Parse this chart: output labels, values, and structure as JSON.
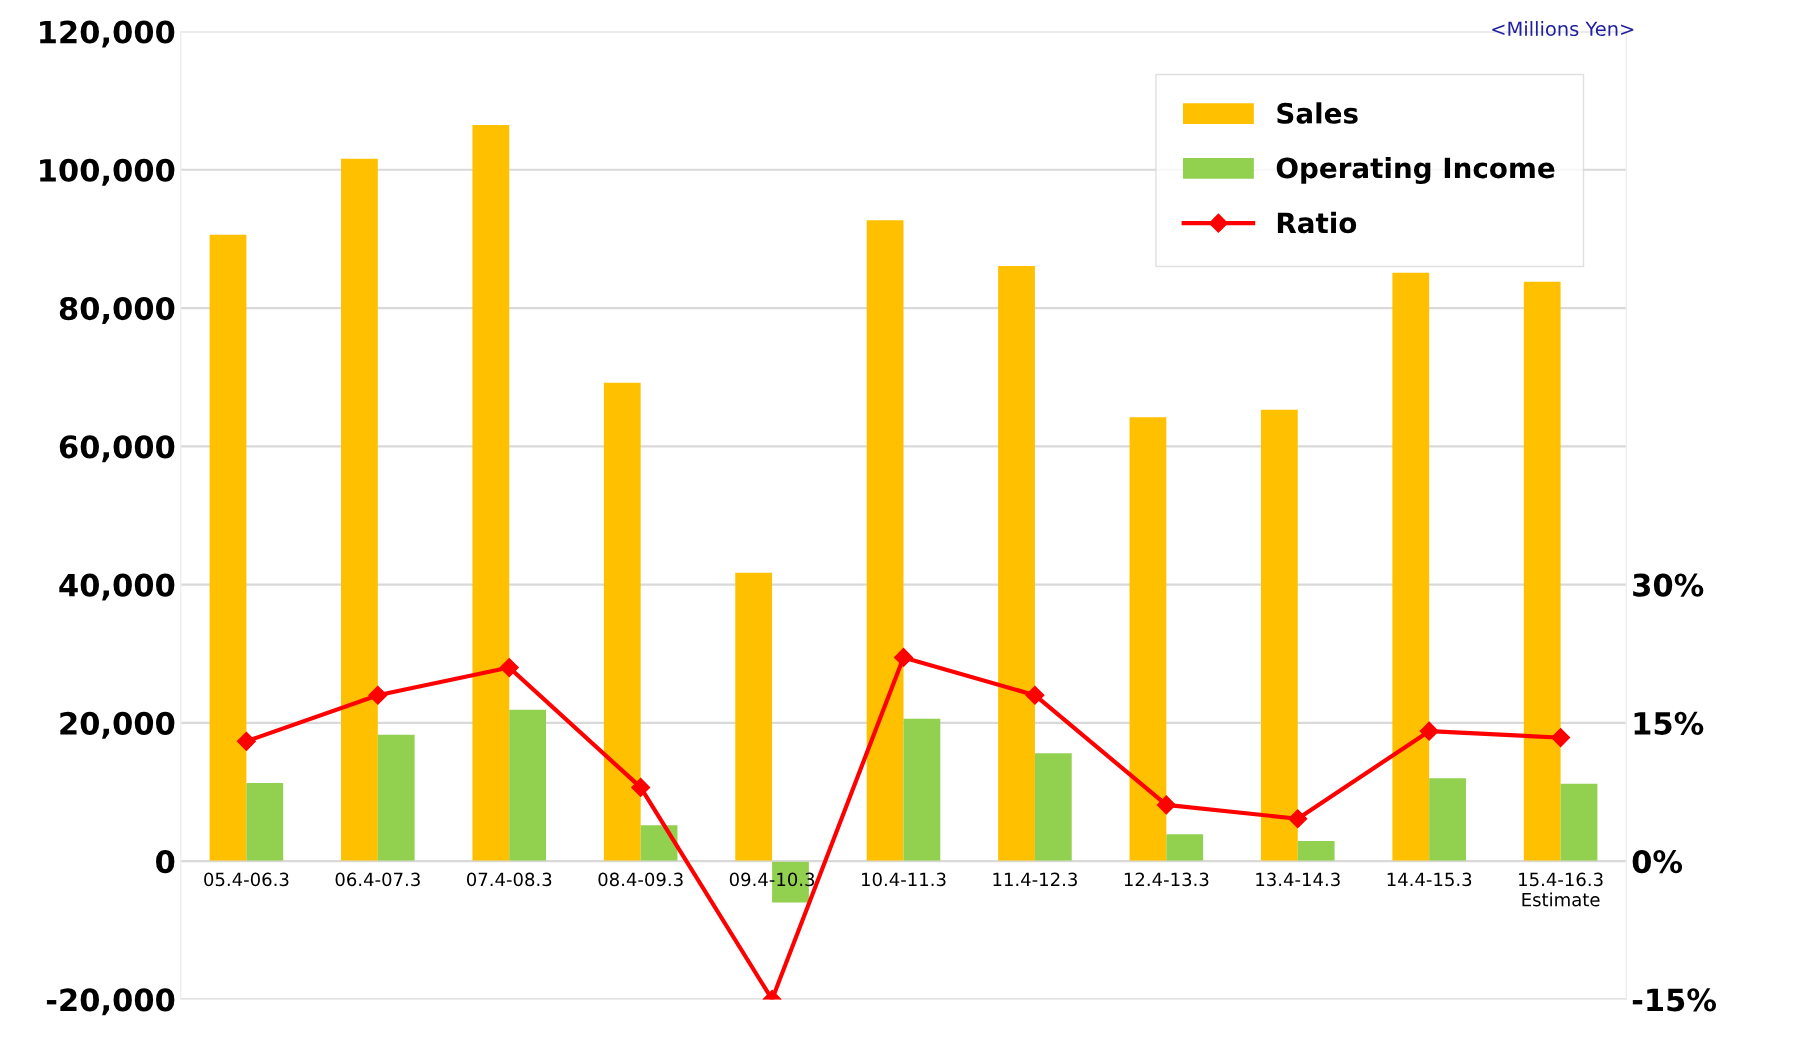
{
  "chart_data": {
    "type": "bar",
    "categories": [
      "05.4-06.3",
      "06.4-07.3",
      "07.4-08.3",
      "08.4-09.3",
      "09.4-10.3",
      "10.4-11.3",
      "11.4-12.3",
      "12.4-13.3",
      "13.4-14.3",
      "14.4-15.3",
      "15.4-16.3\nEstimate"
    ],
    "series": [
      {
        "name": "Sales",
        "color": "#ffc000",
        "values": [
          90600,
          101600,
          106500,
          69200,
          41700,
          92700,
          86100,
          64200,
          65300,
          85100,
          83800
        ]
      },
      {
        "name": "Operating Income",
        "color": "#92d050",
        "values": [
          11300,
          18300,
          21900,
          5200,
          -6000,
          20600,
          15600,
          3900,
          2900,
          12000,
          11200
        ]
      },
      {
        "name": "Ratio",
        "type": "line",
        "axis": "y2",
        "color": "#ff0000",
        "marker": "diamond",
        "values": [
          13.0,
          18.0,
          21.0,
          8.0,
          -15.0,
          22.1,
          18.0,
          6.1,
          4.6,
          14.1,
          13.4
        ]
      }
    ],
    "ylim": [
      -20000,
      120000
    ],
    "yticks": [
      {
        "value": -20000,
        "label": "-20,000"
      },
      {
        "value": 0,
        "label": "0"
      },
      {
        "value": 20000,
        "label": "20,000"
      },
      {
        "value": 40000,
        "label": "40,000"
      },
      {
        "value": 60000,
        "label": "60,000"
      },
      {
        "value": 80000,
        "label": "80,000"
      },
      {
        "value": 100000,
        "label": "100,000"
      },
      {
        "value": 120000,
        "label": "120,000"
      }
    ],
    "y2lim": [
      -15,
      90
    ],
    "y2ticks": [
      {
        "value": -15,
        "label": "-15%"
      },
      {
        "value": 0,
        "label": "0%"
      },
      {
        "value": 15,
        "label": "15%"
      },
      {
        "value": 30,
        "label": "30%"
      }
    ],
    "annotations": [
      "<Millions Yen>"
    ],
    "grid": "y",
    "legend": "top right"
  }
}
